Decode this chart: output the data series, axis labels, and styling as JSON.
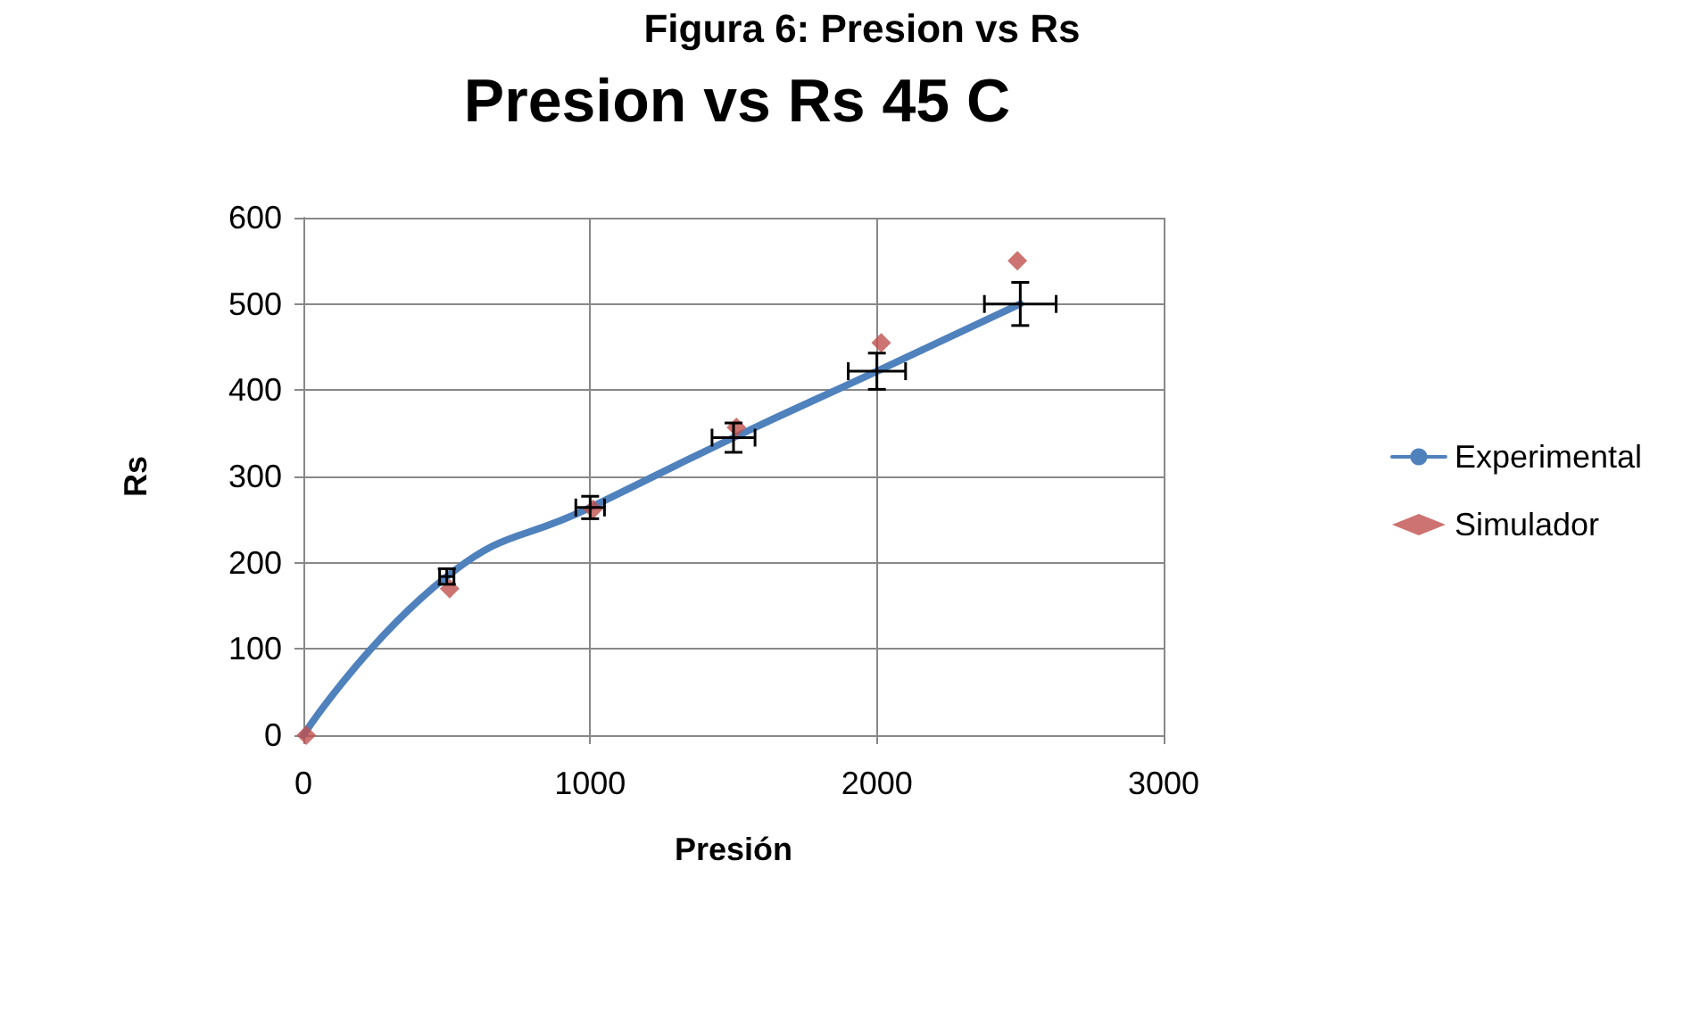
{
  "chart_data": {
    "type": "line",
    "title": "Presion vs Rs 45 C",
    "xlabel": "Presión",
    "ylabel": "Rs",
    "annotations": [
      "Figura 6: Presion vs Rs"
    ],
    "x": [
      0,
      500,
      1000,
      1500,
      2000,
      2500
    ],
    "series": [
      {
        "name": "Experimental",
        "color": "#4f81bd",
        "values": [
          0,
          184,
          264,
          345,
          422,
          500
        ],
        "errors": [
          0,
          9,
          13,
          17,
          21,
          25
        ],
        "xerrors": [
          0,
          25,
          50,
          75,
          100,
          125
        ],
        "marker": "none"
      },
      {
        "name": "Simulador",
        "type": "scatter",
        "color": "#c0504d",
        "x": [
          10,
          510,
          1010,
          1510,
          2015,
          2490
        ],
        "values": [
          0,
          170,
          262,
          357,
          455,
          550
        ],
        "marker": "diamond"
      }
    ],
    "xlim": [
      0,
      3000
    ],
    "xticks": [
      0,
      1000,
      2000,
      3000
    ],
    "ylim": [
      0,
      600
    ],
    "yticks": [
      0,
      100,
      200,
      300,
      400,
      500,
      600
    ],
    "grid": true,
    "legend": "right"
  }
}
